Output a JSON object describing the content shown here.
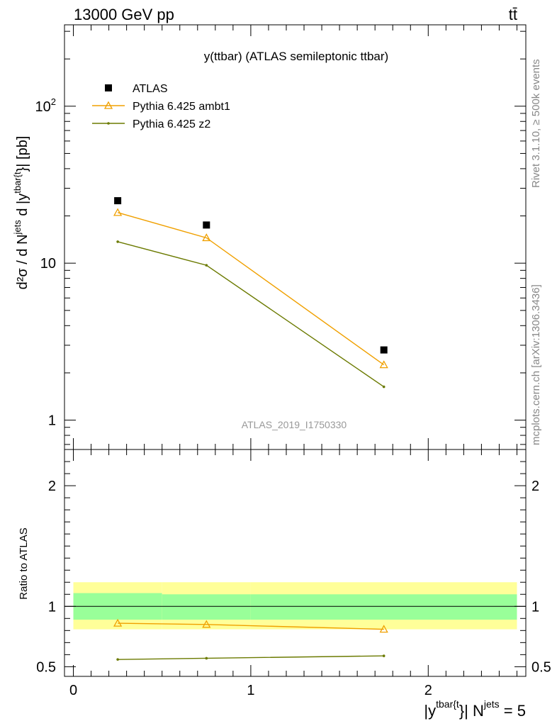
{
  "header": {
    "left": "13000 GeV pp",
    "right": "tt̄"
  },
  "side": {
    "rivet": "Rivet 3.1.10, ≥ 500k events",
    "mcplots": "mcplots.cern.ch [arXiv:1306.3436]"
  },
  "chart_data": [
    {
      "type": "scatter",
      "title": "y(ttbar) (ATLAS semileptonic ttbar)",
      "ylabel_main": "d²σ / d N",
      "ylabel_sup1": "jets",
      "ylabel_mid": " d |y",
      "ylabel_sup2": "tbar{t",
      "ylabel_tail": "}| [pb]",
      "watermark": "ATLAS_2019_I1750330",
      "yscale": "log",
      "ylim": [
        0.65,
        330
      ],
      "xlim": [
        -0.05,
        2.55
      ],
      "yticks": [
        {
          "value": 1,
          "label": "1"
        },
        {
          "value": 10,
          "label": "10"
        },
        {
          "value": 100,
          "label": "10",
          "sup": "2"
        }
      ],
      "legend_position": "top-left",
      "series": [
        {
          "name": "ATLAS",
          "color": "#000000",
          "marker": "square",
          "x": [
            0.25,
            0.75,
            1.75
          ],
          "y": [
            25,
            17.5,
            2.8
          ]
        },
        {
          "name": "Pythia 6.425 ambt1",
          "color": "#f0a000",
          "marker": "triangle",
          "x": [
            0.25,
            0.75,
            1.75
          ],
          "y": [
            21,
            14.5,
            2.25
          ]
        },
        {
          "name": "Pythia 6.425 z2",
          "color": "#6b7a00",
          "marker": "dot",
          "x": [
            0.25,
            0.75,
            1.75
          ],
          "y": [
            13.7,
            9.7,
            1.63
          ]
        }
      ]
    },
    {
      "type": "line",
      "ylabel": "Ratio to ATLAS",
      "xlabel_main": "|y",
      "xlabel_sup1": "tbar{t",
      "xlabel_mid": "}| N",
      "xlabel_sup2": "jets",
      "xlabel_tail": " = 5",
      "xlim": [
        -0.05,
        2.55
      ],
      "ylim": [
        0.42,
        2.3
      ],
      "xticks": [
        {
          "value": 0,
          "label": "0"
        },
        {
          "value": 1,
          "label": "1"
        },
        {
          "value": 2,
          "label": "2"
        }
      ],
      "yticks": [
        {
          "value": 0.5,
          "label": "0.5"
        },
        {
          "value": 1,
          "label": "1"
        },
        {
          "value": 2,
          "label": "2"
        }
      ],
      "bands": {
        "bins": [
          [
            0,
            0.5
          ],
          [
            0.5,
            1.0
          ],
          [
            1.0,
            2.5
          ]
        ],
        "stat": [
          [
            0.89,
            1.11
          ],
          [
            0.89,
            1.1
          ],
          [
            0.89,
            1.1
          ]
        ],
        "total": [
          [
            0.81,
            1.2
          ],
          [
            0.81,
            1.2
          ],
          [
            0.81,
            1.2
          ]
        ],
        "stat_color": "#99ff99",
        "total_color": "#ffff99"
      },
      "series": [
        {
          "name": "Pythia 6.425 ambt1",
          "color": "#f0a000",
          "marker": "triangle",
          "x": [
            0.25,
            0.75,
            1.75
          ],
          "y": [
            0.86,
            0.85,
            0.81
          ]
        },
        {
          "name": "Pythia 6.425 z2",
          "color": "#6b7a00",
          "marker": "dot",
          "x": [
            0.25,
            0.75,
            1.75
          ],
          "y": [
            0.56,
            0.57,
            0.59
          ]
        }
      ]
    }
  ]
}
